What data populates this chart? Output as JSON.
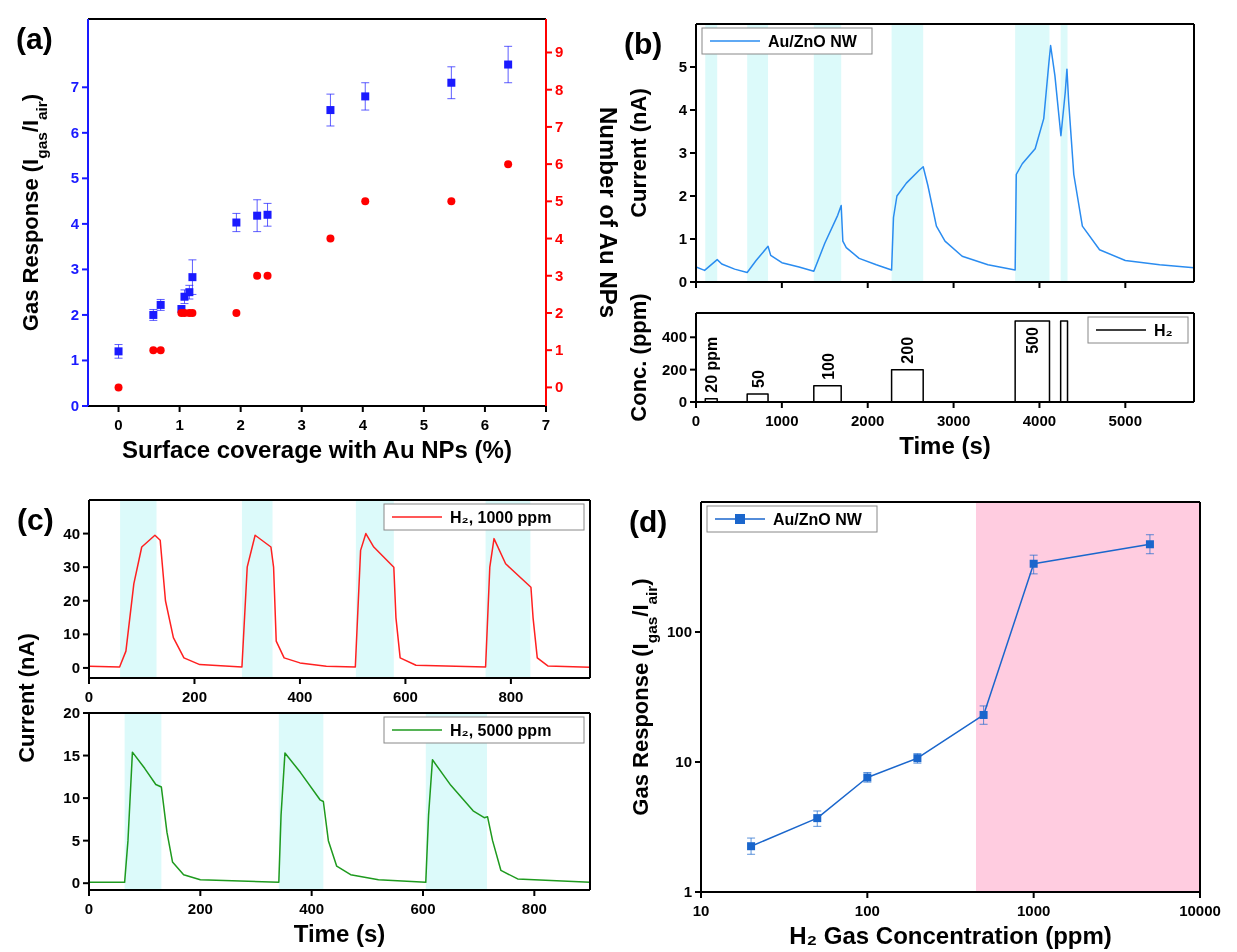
{
  "chart_data": [
    {
      "type": "scatter",
      "title": "(a)",
      "xlabel": "Surface coverage with Au NPs (%)",
      "ylabel": "Gas Response (I$_{gas}$/I$_{air}$)",
      "y2label": "Number of Au NPs",
      "xlim": [
        -0.5,
        7
      ],
      "xticks": [
        0,
        1,
        2,
        3,
        4,
        5,
        6,
        7
      ],
      "ylim": [
        0,
        8.5
      ],
      "yticks": [
        0,
        1,
        2,
        3,
        4,
        5,
        6,
        7
      ],
      "y2lim": [
        -0.5,
        9.9
      ],
      "y2ticks": [
        0,
        1,
        2,
        3,
        4,
        5,
        6,
        7,
        8,
        9
      ],
      "legend": false,
      "series": [
        {
          "color": "#1a1aff",
          "marker": "square",
          "x": [
            0,
            0.57,
            0.69,
            1.03,
            1.08,
            1.16,
            1.21,
            1.93,
            2.27,
            2.44,
            3.47,
            4.04,
            5.45,
            6.38
          ],
          "values": [
            1.2,
            2.0,
            2.22,
            2.13,
            2.4,
            2.5,
            2.83,
            4.03,
            4.18,
            4.2,
            6.5,
            6.8,
            7.1,
            7.5
          ],
          "errors": [
            0.15,
            0.12,
            0.12,
            null,
            0.15,
            0.15,
            0.38,
            0.2,
            0.35,
            0.25,
            0.35,
            0.3,
            0.35,
            0.4
          ]
        },
        {
          "color": "#ff0000",
          "marker": "circle",
          "axis": "y2",
          "x": [
            0,
            0.57,
            0.69,
            1.03,
            1.08,
            1.16,
            1.21,
            1.93,
            2.27,
            2.44,
            3.47,
            4.04,
            5.45,
            6.38
          ],
          "values": [
            0,
            1,
            1,
            2,
            2,
            2,
            2,
            2,
            3,
            3,
            4,
            5,
            5,
            6
          ]
        }
      ]
    },
    {
      "type": "line",
      "title": "(b)",
      "ylabel": "Current (nA)",
      "xlim": [
        0,
        5800
      ],
      "xticks": [
        {
          "value": 0,
          "label": null
        },
        {
          "value": 1000,
          "label": null
        },
        {
          "value": 2000,
          "label": null
        },
        {
          "value": 3000,
          "label": null
        },
        {
          "value": 4000,
          "label": null
        },
        {
          "value": 5000,
          "label": null
        }
      ],
      "ylim": [
        0,
        6
      ],
      "yticks": [
        0,
        1,
        2,
        3,
        4,
        5
      ],
      "tick_labels": "y",
      "legend": "top left",
      "bands": [
        {
          "axis": "x",
          "from": 108,
          "to": 247,
          "color": "#dcfafa"
        },
        {
          "axis": "x",
          "from": 596,
          "to": 839,
          "color": "#dcfafa"
        },
        {
          "axis": "x",
          "from": 1372,
          "to": 1691,
          "color": "#dcfafa"
        },
        {
          "axis": "x",
          "from": 2278,
          "to": 2646,
          "color": "#dcfafa"
        },
        {
          "axis": "x",
          "from": 3717,
          "to": 4117,
          "color": "#dcfafa"
        },
        {
          "axis": "x",
          "from": 4247,
          "to": 4327,
          "color": "#dcfafa"
        }
      ],
      "series": [
        {
          "name": "Au/ZnO NW",
          "color": "#2a8cf0",
          "x": [
            0,
            100,
            247,
            300,
            450,
            596,
            700,
            839,
            870,
            1000,
            1200,
            1372,
            1500,
            1650,
            1691,
            1710,
            1750,
            1900,
            2100,
            2278,
            2300,
            2340,
            2450,
            2600,
            2646,
            2700,
            2800,
            2900,
            3100,
            3400,
            3717,
            3730,
            3800,
            3950,
            4050,
            4110,
            4130,
            4180,
            4250,
            4300,
            4320,
            4340,
            4400,
            4500,
            4700,
            5000,
            5400,
            5800
          ],
          "values": [
            0.35,
            0.27,
            0.52,
            0.42,
            0.3,
            0.22,
            0.5,
            0.83,
            0.62,
            0.45,
            0.35,
            0.25,
            0.9,
            1.55,
            1.78,
            0.95,
            0.8,
            0.55,
            0.4,
            0.28,
            1.5,
            2.0,
            2.3,
            2.6,
            2.68,
            2.25,
            1.3,
            0.95,
            0.6,
            0.4,
            0.28,
            2.5,
            2.75,
            3.1,
            3.8,
            5.1,
            5.5,
            4.8,
            3.4,
            4.4,
            4.95,
            4.2,
            2.5,
            1.3,
            0.75,
            0.5,
            0.4,
            0.33
          ]
        }
      ]
    },
    {
      "type": "step",
      "xlabel": "Time (s)",
      "ylabel": "Conc. (ppm)",
      "xlim": [
        0,
        5800
      ],
      "xticks": [
        0,
        1000,
        2000,
        3000,
        4000,
        5000
      ],
      "ylim": [
        0,
        550
      ],
      "yticks": [
        0,
        200,
        400
      ],
      "legend": "top right",
      "annotations": [
        {
          "text": "20 ppm",
          "x": 178,
          "y": 20
        },
        {
          "text": "50",
          "x": 718,
          "y": 50
        },
        {
          "text": "100",
          "x": 1532,
          "y": 100
        },
        {
          "text": "200",
          "x": 2462,
          "y": 200
        },
        {
          "text": "500",
          "x": 3917,
          "y": 500
        }
      ],
      "series": [
        {
          "name": "H₂",
          "color": "#000000",
          "x": [
            0,
            108,
            247,
            596,
            839,
            1372,
            1691,
            2278,
            2646,
            3717,
            4117,
            4247,
            4327,
            5800
          ],
          "values": [
            0,
            20,
            0,
            50,
            0,
            100,
            0,
            200,
            0,
            500,
            0,
            500,
            0,
            0
          ]
        }
      ]
    },
    {
      "type": "line",
      "title": "(c)",
      "xlim": [
        0,
        950
      ],
      "xticks": [
        0,
        200,
        400,
        600,
        800
      ],
      "ylim": [
        -3,
        50
      ],
      "yticks": [
        0,
        10,
        20,
        30,
        40
      ],
      "legend": "top right",
      "bands": [
        {
          "axis": "x",
          "from": 59,
          "to": 128,
          "color": "#dcfafa"
        },
        {
          "axis": "x",
          "from": 290,
          "to": 348,
          "color": "#dcfafa"
        },
        {
          "axis": "x",
          "from": 506,
          "to": 578,
          "color": "#dcfafa"
        },
        {
          "axis": "x",
          "from": 752,
          "to": 837,
          "color": "#dcfafa"
        }
      ],
      "series": [
        {
          "name": "H₂, 1000 ppm",
          "color": "#ff2020",
          "x": [
            0,
            58,
            70,
            85,
            100,
            125,
            135,
            145,
            160,
            180,
            210,
            290,
            300,
            315,
            345,
            350,
            355,
            370,
            400,
            450,
            505,
            515,
            525,
            540,
            578,
            582,
            590,
            620,
            752,
            760,
            768,
            790,
            838,
            842,
            850,
            870,
            950
          ],
          "values": [
            0.5,
            0.3,
            5,
            25,
            36,
            39.5,
            38,
            20,
            9,
            3,
            1,
            0.3,
            30,
            39.5,
            36,
            30,
            8,
            3,
            1.5,
            0.5,
            0.3,
            35,
            40,
            36,
            30,
            15,
            3,
            0.8,
            0.3,
            30,
            38.5,
            31,
            24,
            15,
            3,
            0.6,
            0.2
          ]
        }
      ]
    },
    {
      "type": "line",
      "xlabel": "Time (s)",
      "ylabel": "Current (nA)",
      "xlim": [
        0,
        900
      ],
      "xticks": [
        0,
        200,
        400,
        600,
        800
      ],
      "ylim": [
        -0.8,
        20
      ],
      "yticks": [
        0,
        5,
        10,
        15,
        20
      ],
      "legend": "top right",
      "bands": [
        {
          "axis": "x",
          "from": 64,
          "to": 130,
          "color": "#dcfafa"
        },
        {
          "axis": "x",
          "from": 341,
          "to": 421,
          "color": "#dcfafa"
        },
        {
          "axis": "x",
          "from": 605,
          "to": 715,
          "color": "#dcfafa"
        }
      ],
      "series": [
        {
          "name": "H₂, 5000 ppm",
          "color": "#1e9a1e",
          "x": [
            0,
            64,
            70,
            78,
            100,
            120,
            130,
            140,
            150,
            170,
            200,
            341,
            345,
            352,
            380,
            415,
            421,
            430,
            445,
            470,
            520,
            605,
            610,
            617,
            650,
            690,
            710,
            716,
            725,
            740,
            770,
            900
          ],
          "values": [
            0.1,
            0.1,
            5,
            15.4,
            13.5,
            11.6,
            11.3,
            6,
            2.5,
            1,
            0.4,
            0.1,
            8,
            15.3,
            13,
            9.8,
            9.6,
            5,
            2,
            1,
            0.4,
            0.1,
            8,
            14.5,
            11.5,
            8.5,
            7.7,
            7.8,
            5,
            1.5,
            0.5,
            0.1
          ]
        }
      ]
    },
    {
      "type": "line",
      "title": "(d)",
      "xlabel": "H₂ Gas Concentration (ppm)",
      "ylabel": "Gas Response (I$_{gas}$/I$_{air}$)",
      "log": "xy",
      "xlim": [
        10,
        10000
      ],
      "xticks": [
        10,
        100,
        1000,
        10000
      ],
      "ylim": [
        1,
        1000
      ],
      "yticks": [
        1,
        10,
        100
      ],
      "marker": "square",
      "legend": "top left",
      "bands": [
        {
          "axis": "x",
          "from": 450,
          "to": 10000,
          "color": "#ffcce0"
        }
      ],
      "series": [
        {
          "name": "Au/ZnO NW",
          "color": "#1a66cc",
          "x": [
            20,
            50,
            100,
            200,
            500,
            1000,
            5000
          ],
          "values": [
            2.25,
            3.7,
            7.6,
            10.7,
            23,
            335,
            473
          ],
          "errors": [
            [
              1.95,
              2.6
            ],
            [
              3.2,
              4.2
            ],
            [
              7,
              8.3
            ],
            [
              9.8,
              11.6
            ],
            [
              19.5,
              27
            ],
            [
              280,
              390
            ],
            [
              400,
              560
            ]
          ]
        }
      ]
    }
  ]
}
